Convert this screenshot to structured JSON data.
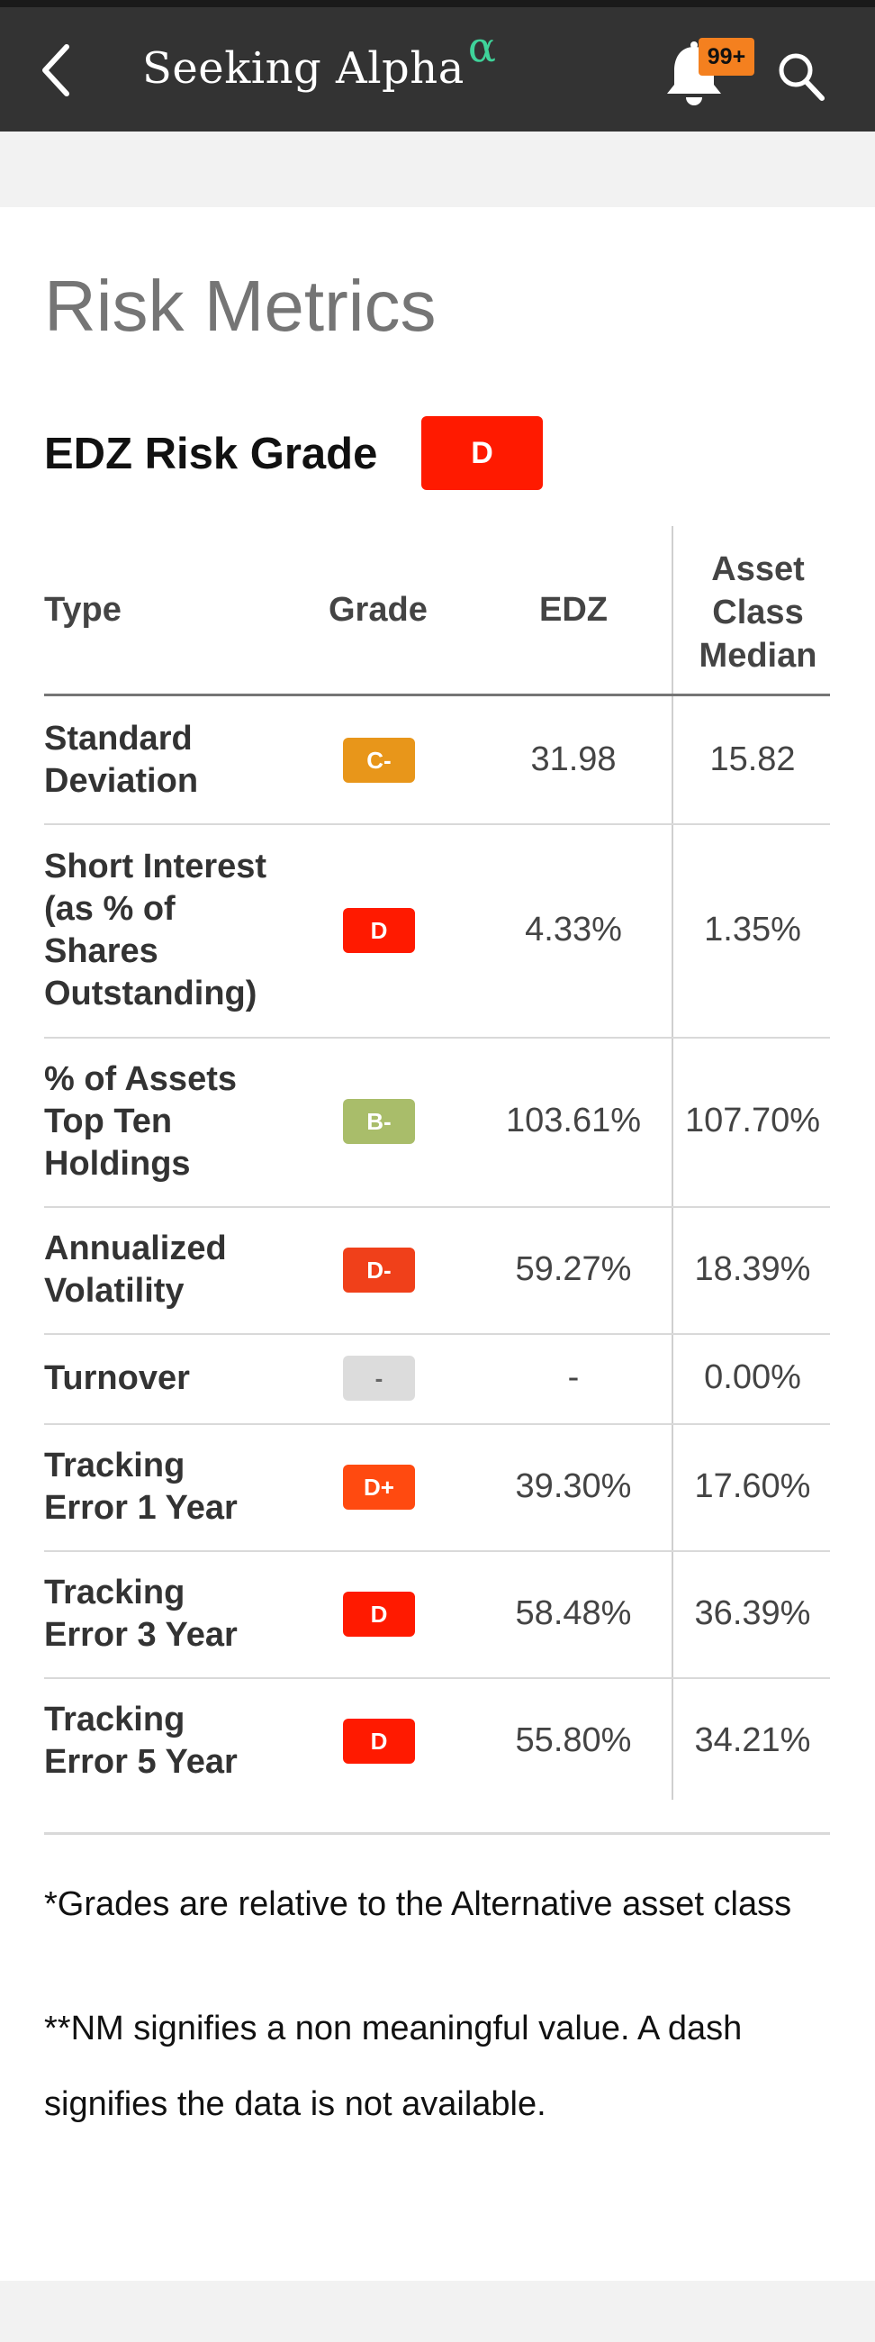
{
  "header": {
    "logo_text": "Seeking Alpha",
    "logo_alpha": "α",
    "notification_badge": "99+",
    "icons": [
      "back-arrow-icon",
      "bell-icon",
      "search-icon"
    ]
  },
  "page": {
    "title": "Risk Metrics",
    "grade_label": "EDZ Risk Grade",
    "grade_value": "D"
  },
  "table": {
    "headers": {
      "type": "Type",
      "grade": "Grade",
      "edz": "EDZ",
      "median": "Asset Class Median"
    },
    "rows": [
      {
        "type": "Standard Deviation",
        "grade": "C-",
        "grade_color": "#e8961a",
        "edz": "31.98",
        "median": "15.82"
      },
      {
        "type": "Short Interest (as % of Shares Outstanding)",
        "grade": "D",
        "grade_color": "#ff1a00",
        "edz": "4.33%",
        "median": "1.35%"
      },
      {
        "type": "% of Assets Top Ten Holdings",
        "grade": "B-",
        "grade_color": "#a9bd6a",
        "edz": "103.61%",
        "median": "107.70%"
      },
      {
        "type": "Annualized Volatility",
        "grade": "D-",
        "grade_color": "#f0401a",
        "edz": "59.27%",
        "median": "18.39%"
      },
      {
        "type": "Turnover",
        "grade": "-",
        "grade_color": "#dcdcdc",
        "edz": "-",
        "median": "0.00%"
      },
      {
        "type": "Tracking Error 1 Year",
        "grade": "D+",
        "grade_color": "#ff4a10",
        "edz": "39.30%",
        "median": "17.60%"
      },
      {
        "type": "Tracking Error 3 Year",
        "grade": "D",
        "grade_color": "#ff1a00",
        "edz": "58.48%",
        "median": "36.39%"
      },
      {
        "type": "Tracking Error 5 Year",
        "grade": "D",
        "grade_color": "#ff1a00",
        "edz": "55.80%",
        "median": "34.21%"
      }
    ]
  },
  "notes": {
    "grades": "*Grades are relative to the Alternative asset class",
    "nm": "**NM signifies a non meaningful value. A dash signifies the data is not available."
  }
}
